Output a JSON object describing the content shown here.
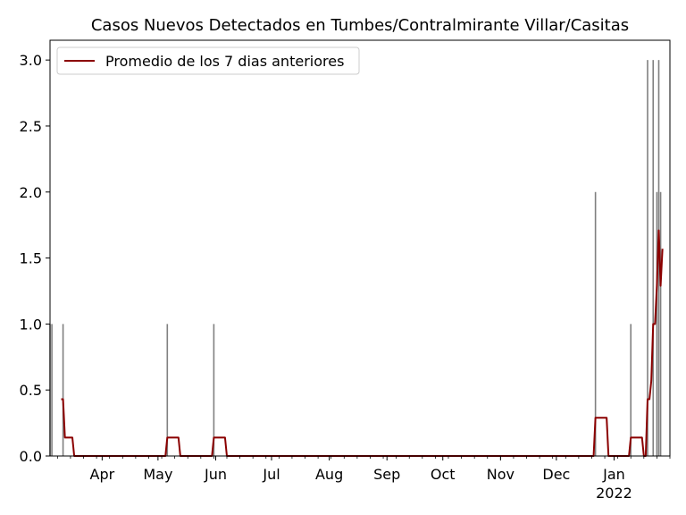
{
  "chart_data": {
    "type": "bar",
    "title": "Casos Nuevos Detectados en Tumbes/Contralmirante Villar/Casitas",
    "xlabel": "",
    "ylabel": "",
    "ylim": [
      0,
      3.15
    ],
    "xlim": [
      "2021-03-04",
      "2022-01-31"
    ],
    "yticks": [
      "0.0",
      "0.5",
      "1.0",
      "1.5",
      "2.0",
      "2.5",
      "3.0"
    ],
    "xticks": [
      {
        "date": "2021-04-01",
        "label": "Apr"
      },
      {
        "date": "2021-05-01",
        "label": "May"
      },
      {
        "date": "2021-06-01",
        "label": "Jun"
      },
      {
        "date": "2021-07-01",
        "label": "Jul"
      },
      {
        "date": "2021-08-01",
        "label": "Aug"
      },
      {
        "date": "2021-09-01",
        "label": "Sep"
      },
      {
        "date": "2021-10-01",
        "label": "Oct"
      },
      {
        "date": "2021-11-01",
        "label": "Nov"
      },
      {
        "date": "2021-12-01",
        "label": "Dec"
      },
      {
        "date": "2022-01-01",
        "label": "Jan",
        "sublabel": "2022"
      }
    ],
    "grid": false,
    "legend_position": "upper-left",
    "colors": {
      "bars": "#808080",
      "line": "#8b0000"
    },
    "bars": [
      {
        "date": "2021-03-04",
        "value": 1
      },
      {
        "date": "2021-03-05",
        "value": 1
      },
      {
        "date": "2021-03-11",
        "value": 1
      },
      {
        "date": "2021-05-06",
        "value": 1
      },
      {
        "date": "2021-05-31",
        "value": 1
      },
      {
        "date": "2021-12-22",
        "value": 2
      },
      {
        "date": "2022-01-10",
        "value": 1
      },
      {
        "date": "2022-01-19",
        "value": 3
      },
      {
        "date": "2022-01-22",
        "value": 3
      },
      {
        "date": "2022-01-24",
        "value": 2
      },
      {
        "date": "2022-01-25",
        "value": 3
      },
      {
        "date": "2022-01-26",
        "value": 2
      }
    ],
    "series": [
      {
        "name": "Promedio de los 7 dias anteriores",
        "points": [
          {
            "date": "2021-03-10",
            "value": 0.43
          },
          {
            "date": "2021-03-11",
            "value": 0.43
          },
          {
            "date": "2021-03-12",
            "value": 0.14
          },
          {
            "date": "2021-03-16",
            "value": 0.14
          },
          {
            "date": "2021-03-17",
            "value": 0.0
          },
          {
            "date": "2021-05-05",
            "value": 0.0
          },
          {
            "date": "2021-05-06",
            "value": 0.14
          },
          {
            "date": "2021-05-12",
            "value": 0.14
          },
          {
            "date": "2021-05-13",
            "value": 0.0
          },
          {
            "date": "2021-05-30",
            "value": 0.0
          },
          {
            "date": "2021-05-31",
            "value": 0.14
          },
          {
            "date": "2021-06-06",
            "value": 0.14
          },
          {
            "date": "2021-06-07",
            "value": 0.0
          },
          {
            "date": "2021-12-21",
            "value": 0.0
          },
          {
            "date": "2021-12-22",
            "value": 0.29
          },
          {
            "date": "2021-12-28",
            "value": 0.29
          },
          {
            "date": "2021-12-29",
            "value": 0.0
          },
          {
            "date": "2022-01-09",
            "value": 0.0
          },
          {
            "date": "2022-01-10",
            "value": 0.14
          },
          {
            "date": "2022-01-16",
            "value": 0.14
          },
          {
            "date": "2022-01-17",
            "value": 0.0
          },
          {
            "date": "2022-01-18",
            "value": 0.0
          },
          {
            "date": "2022-01-19",
            "value": 0.43
          },
          {
            "date": "2022-01-20",
            "value": 0.43
          },
          {
            "date": "2022-01-21",
            "value": 0.57
          },
          {
            "date": "2022-01-22",
            "value": 1.0
          },
          {
            "date": "2022-01-23",
            "value": 1.0
          },
          {
            "date": "2022-01-24",
            "value": 1.29
          },
          {
            "date": "2022-01-25",
            "value": 1.71
          },
          {
            "date": "2022-01-26",
            "value": 1.29
          },
          {
            "date": "2022-01-27",
            "value": 1.57
          }
        ]
      }
    ]
  }
}
